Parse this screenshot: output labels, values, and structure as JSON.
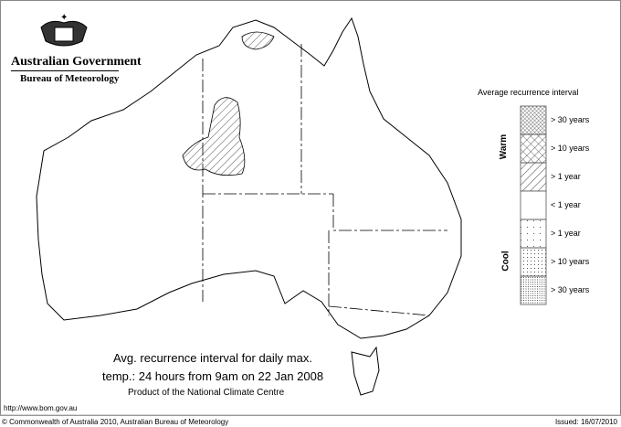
{
  "header": {
    "logo_line1": "Australian Government",
    "logo_line2": "Bureau of Meteorology"
  },
  "map": {
    "title_line1": "Avg. recurrence interval for daily max.",
    "title_line2": "temp.: 24 hours from 9am on 22 Jan 2008",
    "product": "Product of the National Climate Centre",
    "url": "http://www.bom.gov.au",
    "highlighted_category": "Warm > 1 year"
  },
  "legend": {
    "title": "Average recurrence interval",
    "warm_label": "Warm",
    "cool_label": "Cool",
    "items": [
      {
        "label": "> 30 years",
        "pattern": "dense-crosshatch"
      },
      {
        "label": "> 10 years",
        "pattern": "crosshatch"
      },
      {
        "label": "> 1 year",
        "pattern": "diagonal"
      },
      {
        "label": "< 1 year",
        "pattern": "blank"
      },
      {
        "label": "> 1 year",
        "pattern": "sparse-dots"
      },
      {
        "label": "> 10 years",
        "pattern": "dots"
      },
      {
        "label": "> 30 years",
        "pattern": "dense-dots"
      }
    ]
  },
  "footer": {
    "copyright": "© Commonwealth of Australia 2010, Australian Bureau of Meteorology",
    "issued": "Issued: 16/07/2010"
  }
}
